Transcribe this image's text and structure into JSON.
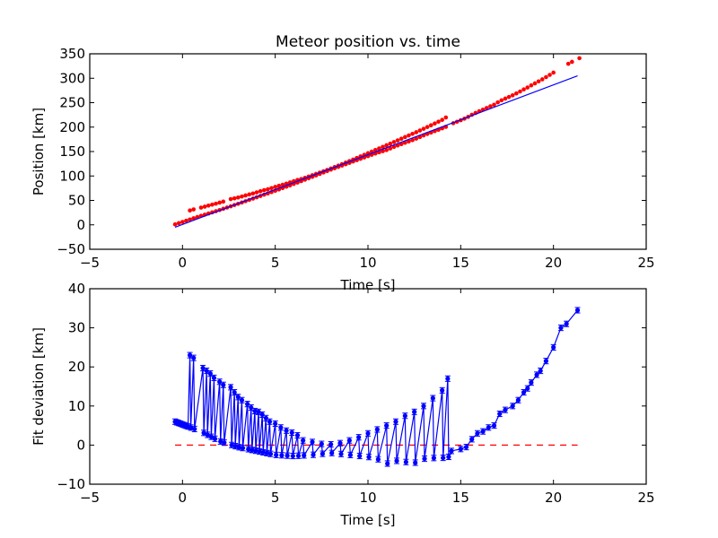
{
  "chart_data": [
    {
      "type": "scatter",
      "title": "Meteor position vs. time",
      "xlabel": "Time [s]",
      "ylabel": "Position [km]",
      "xlim": [
        -5,
        25
      ],
      "ylim": [
        -50,
        350
      ],
      "xticks": [
        "−5",
        "0",
        "5",
        "10",
        "15",
        "20",
        "25"
      ],
      "xtick_values": [
        -5,
        0,
        5,
        10,
        15,
        20,
        25
      ],
      "yticks": [
        "−50",
        "0",
        "50",
        "100",
        "150",
        "200",
        "250",
        "300",
        "350"
      ],
      "ytick_values": [
        -50,
        0,
        50,
        100,
        150,
        200,
        250,
        300,
        350
      ],
      "series": [
        {
          "name": "observed positions",
          "style": "red star markers",
          "color": "#ff0000",
          "track_a": {
            "t_start": -0.4,
            "t_end": 21.4,
            "step": 0.2
          },
          "track_b": {
            "t_start": 0.4,
            "t_end": 14.3,
            "step": 0.2
          }
        },
        {
          "name": "linear fit",
          "style": "blue line",
          "color": "#0000ff",
          "x": [
            -0.4,
            21.3
          ],
          "y": [
            -5,
            305
          ]
        }
      ],
      "fit": {
        "intercept": 0.7,
        "slope": 14.29
      }
    },
    {
      "type": "line",
      "title": "",
      "xlabel": "Time [s]",
      "ylabel": "Fit deviation [km]",
      "xlim": [
        -5,
        25
      ],
      "ylim": [
        -10,
        40
      ],
      "xticks": [
        "−5",
        "0",
        "5",
        "10",
        "15",
        "20",
        "25"
      ],
      "xtick_values": [
        -5,
        0,
        5,
        10,
        15,
        20,
        25
      ],
      "yticks": [
        "−10",
        "0",
        "10",
        "20",
        "30",
        "40"
      ],
      "ytick_values": [
        -10,
        0,
        10,
        20,
        30,
        40
      ],
      "series": [
        {
          "name": "deviation",
          "style": "blue line with circle markers and error bars",
          "color": "#0000ff",
          "error": 0.7,
          "lower_track": {
            "x": [
              -0.4,
              1.0,
              2.0,
              3.0,
              4.0,
              5.0,
              6.0,
              7.0,
              8.0,
              9.0,
              10.0,
              10.5,
              11.0,
              11.5,
              12.0,
              12.5,
              13.0,
              13.5,
              14.0,
              14.3
            ],
            "y": [
              6,
              3.5,
              1,
              -0.5,
              -1.5,
              -2.5,
              -2.8,
              -2.5,
              -2,
              -2.5,
              -3,
              -3.5,
              -4.8,
              -4,
              -4.3,
              -4.6,
              -3.5,
              -3.3,
              -3.3,
              -3
            ]
          },
          "upper_track": {
            "x": [
              0.4,
              0.6,
              1.1,
              1.3,
              1.5,
              1.7,
              2.0,
              2.2,
              2.6,
              2.8,
              3.0,
              3.2,
              3.5,
              3.7,
              3.9,
              4.1,
              4.3,
              4.5,
              4.7,
              5.0,
              5.3,
              5.6,
              5.9,
              6.2,
              6.5,
              7.0,
              7.5,
              8.0,
              8.5,
              9.0,
              9.5,
              10.0,
              10.5,
              11.0,
              11.5,
              12.0,
              12.5,
              13.0,
              13.5,
              14.0,
              14.3
            ],
            "y": [
              23,
              22.3,
              19.7,
              19,
              18.3,
              17.2,
              16.2,
              15.4,
              14.8,
              13.5,
              12.3,
              11.5,
              10.5,
              9.6,
              8.7,
              8.5,
              7.8,
              6.9,
              6,
              5.5,
              4.5,
              3.7,
              3.2,
              2.5,
              1.2,
              0.8,
              0.3,
              0.2,
              0.5,
              1.2,
              2,
              3,
              4,
              5,
              6,
              7.5,
              8.5,
              10,
              12,
              14,
              17
            ]
          },
          "tail": {
            "x": [
              14.5,
              15.0,
              15.3,
              15.6,
              15.9,
              16.2,
              16.5,
              16.8,
              17.1,
              17.4,
              17.8,
              18.1,
              18.4,
              18.6,
              18.8,
              19.1,
              19.3,
              19.6,
              20.0,
              20.4,
              20.7,
              21.3
            ],
            "y": [
              -1.5,
              -1,
              -0.5,
              1.5,
              3,
              3.5,
              4.5,
              5,
              8,
              9,
              10,
              11.5,
              13.5,
              14.5,
              16,
              18,
              19,
              21.5,
              25,
              30,
              31,
              34.5
            ]
          }
        },
        {
          "name": "zero line",
          "style": "red dashed",
          "color": "#ff0000",
          "x": [
            -0.4,
            21.3
          ],
          "y": [
            0,
            0
          ]
        }
      ]
    }
  ]
}
